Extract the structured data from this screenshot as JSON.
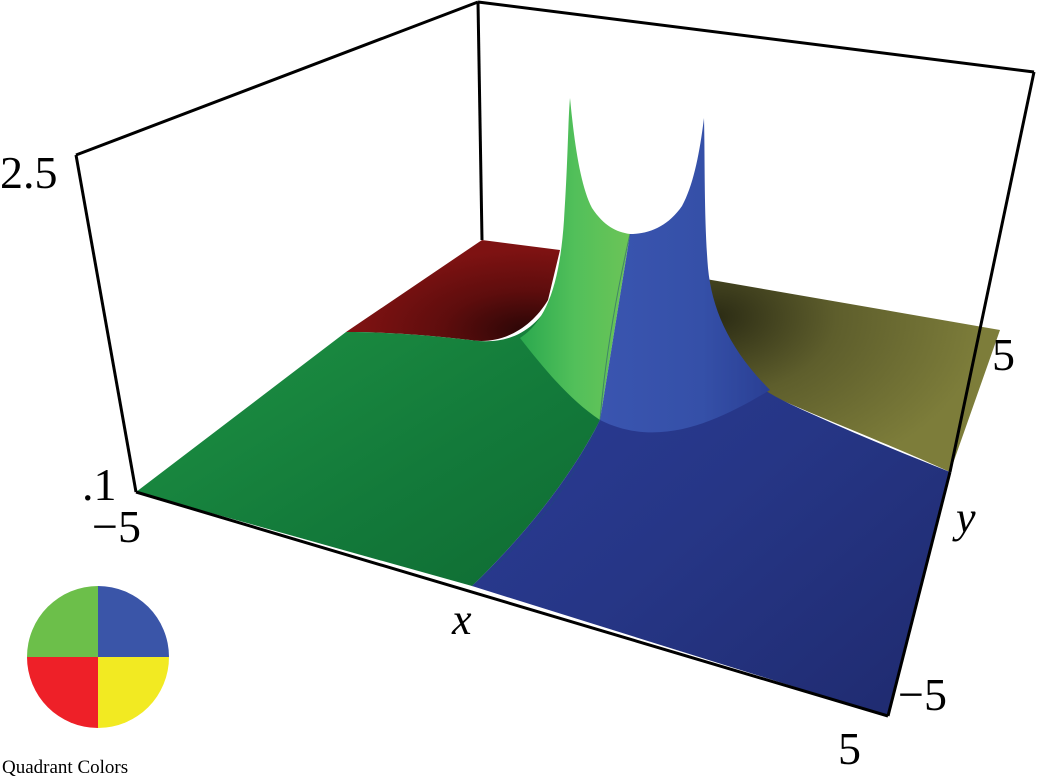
{
  "chart_data": {
    "type": "surface-3d",
    "title": "",
    "xlabel": "x",
    "ylabel": "y",
    "zlabel": "",
    "xlim": [
      -5,
      5
    ],
    "ylim": [
      -5,
      5
    ],
    "zlim": [
      0.1,
      2.5
    ],
    "x_ticks": [
      "−5",
      "5"
    ],
    "y_ticks": [
      "−5",
      "5"
    ],
    "z_ticks": [
      ".1",
      "2.5"
    ],
    "surface_colors": {
      "quadrant_xneg_ypos": "#22a84a",
      "quadrant_xpos_ypos": "#2e44a0",
      "quadrant_xneg_yneg": "#7a1010",
      "quadrant_xpos_yneg": "#7a7a30"
    },
    "legend": {
      "caption": "Quadrant Colors",
      "quadrants": [
        {
          "position": "top-left",
          "color": "#6cbf4a"
        },
        {
          "position": "top-right",
          "color": "#3a55a8"
        },
        {
          "position": "bottom-left",
          "color": "#ee2028"
        },
        {
          "position": "bottom-right",
          "color": "#f2ea22"
        }
      ]
    }
  }
}
